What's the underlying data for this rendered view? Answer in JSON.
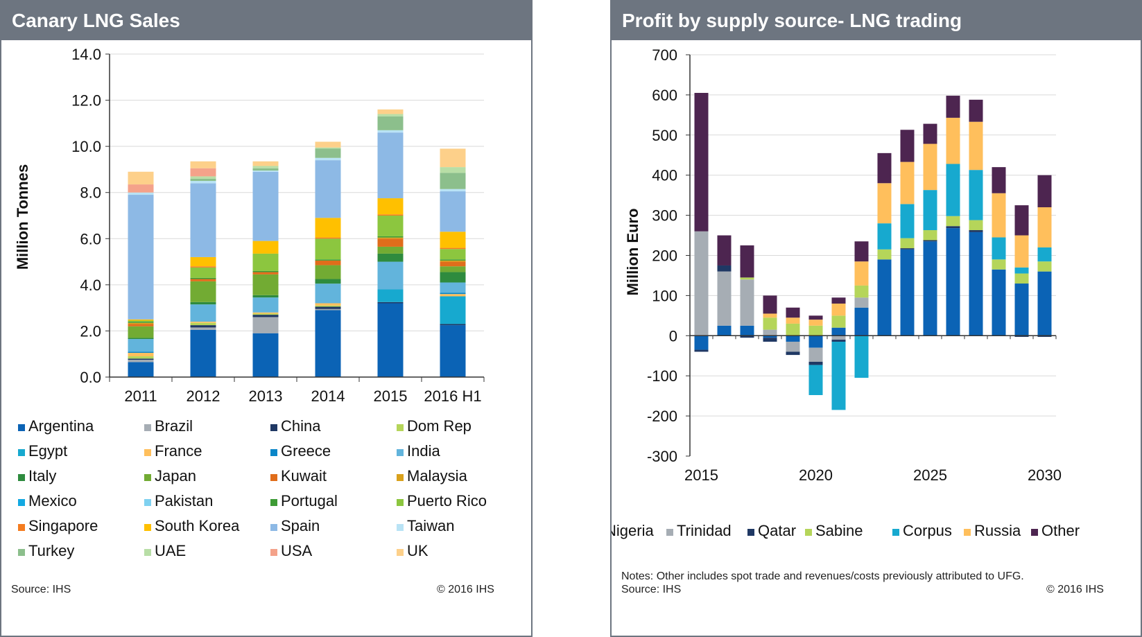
{
  "left_panel": {
    "title": "Canary LNG Sales",
    "source": "Source: IHS",
    "copyright": "© 2016 IHS"
  },
  "right_panel": {
    "title": "Profit by supply source- LNG trading",
    "notes": "Notes: Other includes spot trade and revenues/costs previously attributed to UFG.",
    "source": "Source: IHS",
    "copyright": "© 2016 IHS"
  },
  "chart_data": [
    {
      "type": "bar",
      "stacked": true,
      "ylabel": "Million Tonnes",
      "xlabel": "",
      "ylim": [
        0,
        14
      ],
      "ytick_labels": [
        "0.0",
        "2.0",
        "4.0",
        "6.0",
        "8.0",
        "10.0",
        "12.0",
        "14.0"
      ],
      "categories": [
        "2011",
        "2012",
        "2013",
        "2014",
        "2015",
        "2016 H1"
      ],
      "legend": "bottom",
      "series": [
        {
          "name": "Argentina",
          "color": "#0b63b5",
          "values": [
            0.65,
            2.05,
            1.9,
            2.9,
            3.2,
            2.25
          ]
        },
        {
          "name": "Brazil",
          "color": "#a6adb4",
          "values": [
            0.1,
            0.1,
            0.7,
            0.05,
            0.0,
            0.0
          ]
        },
        {
          "name": "China",
          "color": "#1f3864",
          "values": [
            0.05,
            0.1,
            0.1,
            0.1,
            0.05,
            0.05
          ]
        },
        {
          "name": "Dom Rep",
          "color": "#b5d55a",
          "values": [
            0.1,
            0.1,
            0.05,
            0.05,
            0.0,
            0.0
          ]
        },
        {
          "name": "Egypt",
          "color": "#17a9cf",
          "values": [
            0.0,
            0.0,
            0.0,
            0.0,
            0.55,
            1.2
          ]
        },
        {
          "name": "France",
          "color": "#ffbf5c",
          "values": [
            0.15,
            0.05,
            0.05,
            0.1,
            0.0,
            0.1
          ]
        },
        {
          "name": "Greece",
          "color": "#0a86c8",
          "values": [
            0.05,
            0.0,
            0.0,
            0.0,
            0.0,
            0.05
          ]
        },
        {
          "name": "India",
          "color": "#62b4dc",
          "values": [
            0.55,
            0.75,
            0.65,
            0.85,
            1.2,
            0.45
          ]
        },
        {
          "name": "Italy",
          "color": "#2e8b3e",
          "values": [
            0.05,
            0.1,
            0.1,
            0.2,
            0.35,
            0.45
          ]
        },
        {
          "name": "Japan",
          "color": "#72ab33",
          "values": [
            0.5,
            0.9,
            0.9,
            0.6,
            0.3,
            0.25
          ]
        },
        {
          "name": "Kuwait",
          "color": "#e06d1b",
          "values": [
            0.1,
            0.1,
            0.1,
            0.2,
            0.35,
            0.2
          ]
        },
        {
          "name": "Malaysia",
          "color": "#d9a11c",
          "values": [
            0.05,
            0.0,
            0.0,
            0.0,
            0.05,
            0.05
          ]
        },
        {
          "name": "Mexico",
          "color": "#13a9e2",
          "values": [
            0.0,
            0.0,
            0.0,
            0.0,
            0.0,
            0.0
          ]
        },
        {
          "name": "Pakistan",
          "color": "#7fd1f0",
          "values": [
            0.0,
            0.0,
            0.0,
            0.0,
            0.0,
            0.0
          ]
        },
        {
          "name": "Portugal",
          "color": "#3d9b35",
          "values": [
            0.05,
            0.05,
            0.05,
            0.05,
            0.05,
            0.05
          ]
        },
        {
          "name": "Puerto Rico",
          "color": "#8cc63f",
          "values": [
            0.05,
            0.45,
            0.75,
            0.9,
            0.9,
            0.45
          ]
        },
        {
          "name": "Singapore",
          "color": "#f47c20",
          "values": [
            0.0,
            0.05,
            0.0,
            0.05,
            0.05,
            0.05
          ]
        },
        {
          "name": "South Korea",
          "color": "#ffc000",
          "values": [
            0.05,
            0.4,
            0.55,
            0.85,
            0.7,
            0.7
          ]
        },
        {
          "name": "Spain",
          "color": "#8db9e5",
          "values": [
            5.4,
            3.2,
            3.0,
            2.5,
            2.85,
            1.75
          ]
        },
        {
          "name": "Taiwan",
          "color": "#b9e3f5",
          "values": [
            0.1,
            0.1,
            0.05,
            0.1,
            0.1,
            0.1
          ]
        },
        {
          "name": "Turkey",
          "color": "#8cbf8c",
          "values": [
            0.0,
            0.1,
            0.1,
            0.4,
            0.6,
            0.7
          ]
        },
        {
          "name": "UAE",
          "color": "#b8dea6",
          "values": [
            0.0,
            0.1,
            0.1,
            0.05,
            0.1,
            0.25
          ]
        },
        {
          "name": "USA",
          "color": "#f4a28a",
          "values": [
            0.35,
            0.35,
            0.0,
            0.0,
            0.0,
            0.0
          ]
        },
        {
          "name": "UK",
          "color": "#fdd08a",
          "values": [
            0.55,
            0.3,
            0.2,
            0.25,
            0.2,
            0.8
          ]
        }
      ]
    },
    {
      "type": "bar",
      "stacked": true,
      "ylabel": "Million Euro",
      "xlabel": "",
      "ylim": [
        -300,
        700
      ],
      "ytick_labels": [
        "-300",
        "-200",
        "-100",
        "0",
        "100",
        "200",
        "300",
        "400",
        "500",
        "600",
        "700"
      ],
      "x": [
        2015,
        2016,
        2017,
        2018,
        2019,
        2020,
        2021,
        2022,
        2023,
        2024,
        2025,
        2026,
        2027,
        2028,
        2029,
        2030
      ],
      "xtick_labels": [
        "2015",
        "2020",
        "2025",
        "2030"
      ],
      "legend": "bottom",
      "series": [
        {
          "name": "Nigeria",
          "color": "#0b63b5",
          "values": [
            -35,
            25,
            25,
            -5,
            -15,
            -30,
            20,
            70,
            190,
            215,
            235,
            268,
            258,
            165,
            130,
            160
          ]
        },
        {
          "name": "Trinidad",
          "color": "#a6adb4",
          "values": [
            260,
            135,
            115,
            15,
            -25,
            -35,
            -10,
            25,
            0,
            0,
            0,
            0,
            0,
            0,
            0,
            0
          ]
        },
        {
          "name": "Qatar",
          "color": "#1f3864",
          "values": [
            -5,
            15,
            -5,
            -10,
            -8,
            -8,
            -5,
            0,
            0,
            3,
            3,
            5,
            5,
            0,
            -3,
            -3
          ]
        },
        {
          "name": "Sabine",
          "color": "#b5d55a",
          "values": [
            0,
            0,
            5,
            30,
            30,
            25,
            30,
            30,
            25,
            25,
            25,
            25,
            25,
            25,
            25,
            25
          ]
        },
        {
          "name": "Corpus",
          "color": "#17a9cf",
          "values": [
            0,
            0,
            0,
            0,
            0,
            -75,
            -170,
            -105,
            65,
            85,
            100,
            130,
            125,
            55,
            15,
            35
          ]
        },
        {
          "name": "Russia",
          "color": "#ffbf5c",
          "values": [
            0,
            0,
            0,
            10,
            15,
            15,
            30,
            60,
            100,
            105,
            115,
            115,
            120,
            110,
            80,
            100
          ]
        },
        {
          "name": "Other",
          "color": "#4d2550",
          "values": [
            345,
            75,
            80,
            45,
            25,
            10,
            15,
            50,
            75,
            80,
            50,
            55,
            55,
            65,
            75,
            80
          ]
        }
      ]
    }
  ]
}
